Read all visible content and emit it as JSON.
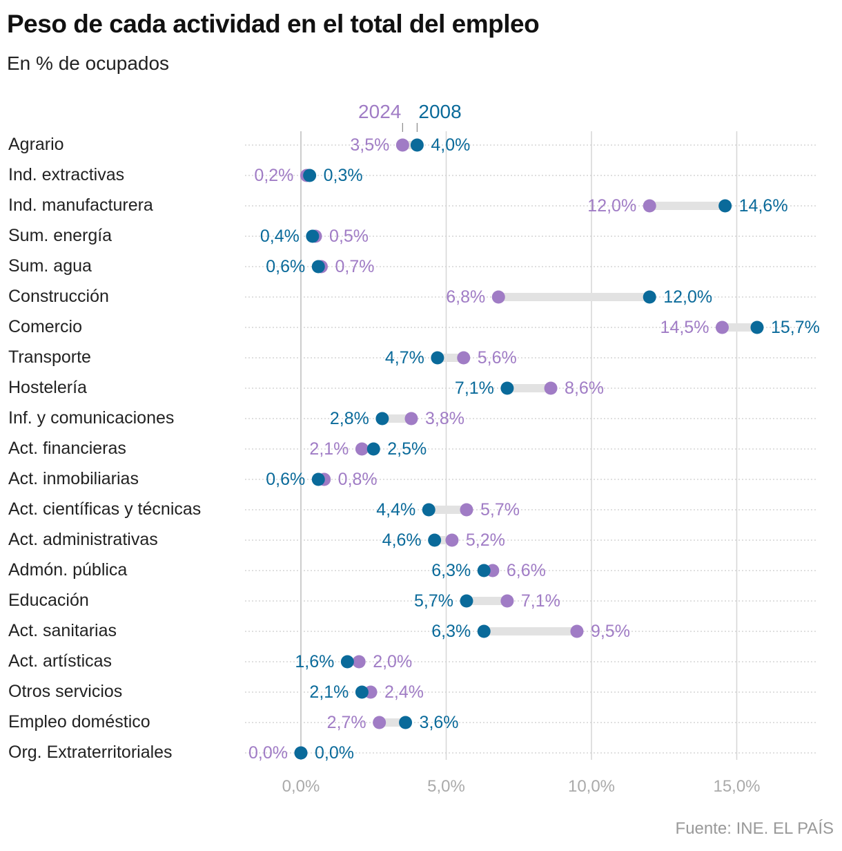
{
  "title": "Peso de cada actividad en el total del empleo",
  "subtitle": "En % de ocupados",
  "source": "Fuente: INE. EL PAÍS",
  "colors": {
    "y2024": "#a07cc5",
    "y2008": "#0a6a9a",
    "connector": "#e2e2e2",
    "grid": "#d6d6d6"
  },
  "chart_data": {
    "type": "dumbbell",
    "xlim": [
      -1.9,
      17.8
    ],
    "xticks": [
      0,
      5,
      10,
      15
    ],
    "xtick_labels": [
      "0,0%",
      "5,0%",
      "10,0%",
      "15,0%"
    ],
    "grid": true,
    "legend": "top, annotated above first row",
    "series": [
      {
        "name": "2024",
        "key": "y2024"
      },
      {
        "name": "2008",
        "key": "y2008"
      }
    ],
    "categories": [
      "Agrario",
      "Ind. extractivas",
      "Ind. manufacturera",
      "Sum. energía",
      "Sum. agua",
      "Construcción",
      "Comercio",
      "Transporte",
      "Hostelería",
      "Inf. y comunicaciones",
      "Act. financieras",
      "Act. inmobiliarias",
      "Act. científicas y técnicas",
      "Act. administrativas",
      "Admón. pública",
      "Educación",
      "Act. sanitarias",
      "Act. artísticas",
      "Otros servicios",
      "Empleo doméstico",
      "Org. Extraterritoriales"
    ],
    "y2008": [
      4.0,
      0.3,
      14.6,
      0.4,
      0.6,
      12.0,
      15.7,
      4.7,
      7.1,
      2.8,
      2.5,
      0.6,
      4.4,
      4.6,
      6.3,
      5.7,
      6.3,
      1.6,
      2.1,
      3.6,
      0.0
    ],
    "y2024": [
      3.5,
      0.2,
      12.0,
      0.5,
      0.7,
      6.8,
      14.5,
      5.6,
      8.6,
      3.8,
      2.1,
      0.8,
      5.7,
      5.2,
      6.6,
      7.1,
      9.5,
      2.0,
      2.4,
      2.7,
      0.0
    ]
  }
}
